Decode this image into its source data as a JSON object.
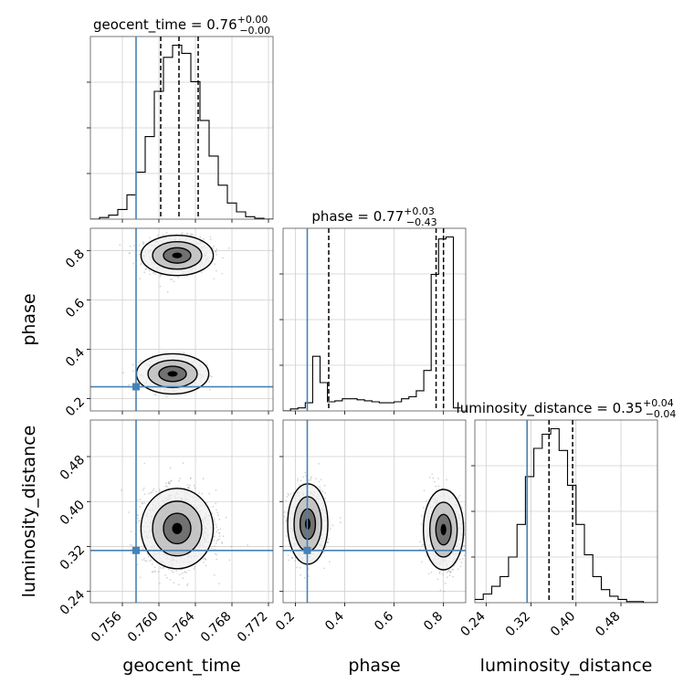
{
  "chart_data": {
    "type": "corner",
    "parameters": [
      "geocent_time",
      "phase",
      "luminosity_distance"
    ],
    "axis_labels": [
      "geocent_time",
      "phase",
      "luminosity_distance"
    ],
    "ranges": {
      "geocent_time": [
        0.7525,
        0.7725
      ],
      "phase": [
        0.15,
        0.89
      ],
      "luminosity_distance": [
        0.22,
        0.545
      ]
    },
    "truths": {
      "geocent_time": 0.7575,
      "phase": 0.248,
      "luminosity_distance": 0.313,
      "color": "#4682b4"
    },
    "titles": [
      {
        "text": "geocent_time = 0.76",
        "sup": "+0.00",
        "sub": "−0.00"
      },
      {
        "text": "phase = 0.77",
        "sup": "+0.03",
        "sub": "−0.43"
      },
      {
        "text": "luminosity_distance = 0.35",
        "sup": "+0.04",
        "sub": "−0.04"
      }
    ],
    "quantiles": {
      "geocent_time": [
        0.7602,
        0.7622,
        0.7643
      ],
      "phase": [
        0.335,
        0.77,
        0.8
      ],
      "luminosity_distance": [
        0.313,
        0.352,
        0.394
      ]
    },
    "ticks": {
      "geocent_time": {
        "values": [
          0.756,
          0.76,
          0.764,
          0.768,
          0.772
        ],
        "labels": [
          "0.756",
          "0.760",
          "0.764",
          "0.768",
          "0.772"
        ]
      },
      "phase": {
        "values": [
          0.2,
          0.4,
          0.6,
          0.8
        ],
        "labels": [
          "0.2",
          "0.4",
          "0.6",
          "0.8"
        ]
      },
      "luminosity_distance": {
        "values": [
          0.24,
          0.32,
          0.4,
          0.48
        ],
        "labels": [
          "0.24",
          "0.32",
          "0.40",
          "0.48"
        ]
      }
    },
    "histograms": {
      "geocent_time": {
        "bins": [
          0.7525,
          0.7535,
          0.7545,
          0.7555,
          0.7565,
          0.7575,
          0.7585,
          0.7595,
          0.7605,
          0.7615,
          0.7625,
          0.7635,
          0.7645,
          0.7655,
          0.7665,
          0.7675,
          0.7685,
          0.7695,
          0.7705,
          0.7715,
          0.7725
        ],
        "counts": [
          0,
          2,
          5,
          12,
          30,
          58,
          102,
          158,
          200,
          215,
          205,
          170,
          122,
          78,
          42,
          20,
          9,
          3,
          1,
          0
        ]
      },
      "phase": {
        "bins": [
          0.15,
          0.18,
          0.21,
          0.24,
          0.27,
          0.3,
          0.33,
          0.36,
          0.39,
          0.42,
          0.45,
          0.48,
          0.51,
          0.54,
          0.57,
          0.6,
          0.63,
          0.66,
          0.69,
          0.72,
          0.75,
          0.78,
          0.81,
          0.84,
          0.87
        ],
        "counts": [
          0,
          2,
          3,
          8,
          54,
          28,
          9,
          10,
          12,
          12,
          11,
          10,
          9,
          8,
          8,
          9,
          12,
          14,
          20,
          40,
          135,
          170,
          172,
          3
        ]
      },
      "luminosity_distance": {
        "bins": [
          0.22,
          0.235,
          0.25,
          0.265,
          0.28,
          0.295,
          0.31,
          0.325,
          0.34,
          0.355,
          0.37,
          0.385,
          0.4,
          0.415,
          0.43,
          0.445,
          0.46,
          0.475,
          0.49,
          0.505,
          0.52,
          0.535,
          0.545
        ],
        "counts": [
          3,
          8,
          15,
          24,
          42,
          72,
          116,
          142,
          155,
          160,
          140,
          108,
          72,
          44,
          24,
          12,
          6,
          3,
          1,
          1,
          0,
          0
        ]
      }
    },
    "scatter_pairs": [
      {
        "x": "geocent_time",
        "y": "phase",
        "contour_levels": 3,
        "modes": [
          {
            "x": 0.762,
            "y": 0.78
          },
          {
            "x": 0.7615,
            "y": 0.3
          }
        ]
      },
      {
        "x": "geocent_time",
        "y": "luminosity_distance",
        "contour_levels": 3,
        "modes": [
          {
            "x": 0.762,
            "y": 0.352
          }
        ]
      },
      {
        "x": "phase",
        "y": "luminosity_distance",
        "contour_levels": 3,
        "modes": [
          {
            "x": 0.8,
            "y": 0.35
          },
          {
            "x": 0.25,
            "y": 0.36
          }
        ]
      }
    ]
  }
}
